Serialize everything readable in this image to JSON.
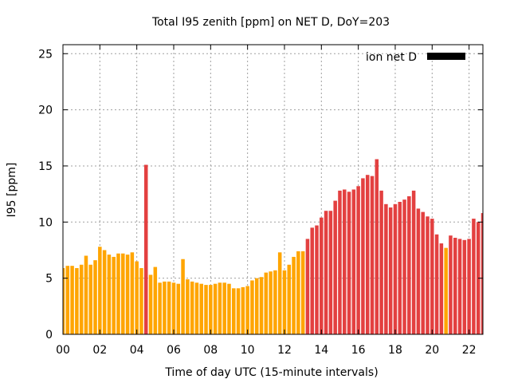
{
  "chart_data": {
    "type": "bar",
    "title": "Total I95 zenith [ppm] on NET D, DoY=203",
    "xlabel": "Time of day UTC (15-minute intervals)",
    "ylabel": "I95 [ppm]",
    "xlim": [
      0,
      22.75
    ],
    "ylim": [
      0,
      25.8
    ],
    "x_ticks": [
      "00",
      "02",
      "04",
      "06",
      "08",
      "10",
      "12",
      "14",
      "16",
      "18",
      "20",
      "22"
    ],
    "y_ticks": [
      "0",
      "5",
      "10",
      "15",
      "20",
      "25"
    ],
    "grid": true,
    "legend": {
      "label": "ion net D",
      "position": "top-right",
      "color": "#000000"
    },
    "colors": {
      "low": "#ffa500",
      "high": "#e34040"
    },
    "x_step_hours": 0.25,
    "values": [
      5.9,
      6.1,
      6.1,
      5.9,
      6.2,
      7.0,
      6.2,
      6.6,
      7.8,
      7.5,
      7.1,
      6.9,
      7.2,
      7.2,
      7.1,
      7.3,
      6.5,
      5.9,
      15.1,
      5.3,
      6.0,
      4.6,
      4.7,
      4.7,
      4.6,
      4.5,
      6.7,
      4.9,
      4.7,
      4.6,
      4.5,
      4.4,
      4.4,
      4.5,
      4.6,
      4.6,
      4.5,
      4.1,
      4.1,
      4.2,
      4.3,
      4.8,
      5.0,
      5.1,
      5.5,
      5.6,
      5.7,
      7.3,
      5.7,
      6.2,
      6.9,
      7.4,
      7.4,
      8.5,
      9.5,
      9.7,
      10.4,
      11.0,
      11.0,
      11.9,
      12.8,
      12.9,
      12.7,
      12.9,
      13.2,
      13.9,
      14.2,
      14.1,
      15.6,
      12.8,
      11.6,
      11.3,
      11.6,
      11.8,
      12.0,
      12.3,
      12.8,
      11.2,
      10.9,
      10.5,
      10.3,
      8.9,
      8.1,
      7.7,
      8.8,
      8.6,
      8.5,
      8.4,
      8.5,
      10.3,
      10.0,
      10.8
    ],
    "bar_colors": [
      "low",
      "low",
      "low",
      "low",
      "low",
      "low",
      "low",
      "low",
      "low",
      "low",
      "low",
      "low",
      "low",
      "low",
      "low",
      "low",
      "low",
      "low",
      "high",
      "low",
      "low",
      "low",
      "low",
      "low",
      "low",
      "low",
      "low",
      "low",
      "low",
      "low",
      "low",
      "low",
      "low",
      "low",
      "low",
      "low",
      "low",
      "low",
      "low",
      "low",
      "low",
      "low",
      "low",
      "low",
      "low",
      "low",
      "low",
      "low",
      "low",
      "low",
      "low",
      "low",
      "low",
      "high",
      "high",
      "high",
      "high",
      "high",
      "high",
      "high",
      "high",
      "high",
      "high",
      "high",
      "high",
      "high",
      "high",
      "high",
      "high",
      "high",
      "high",
      "high",
      "high",
      "high",
      "high",
      "high",
      "high",
      "high",
      "high",
      "high",
      "high",
      "high",
      "high",
      "low",
      "high",
      "high",
      "high",
      "high",
      "high",
      "high",
      "high",
      "high"
    ]
  }
}
